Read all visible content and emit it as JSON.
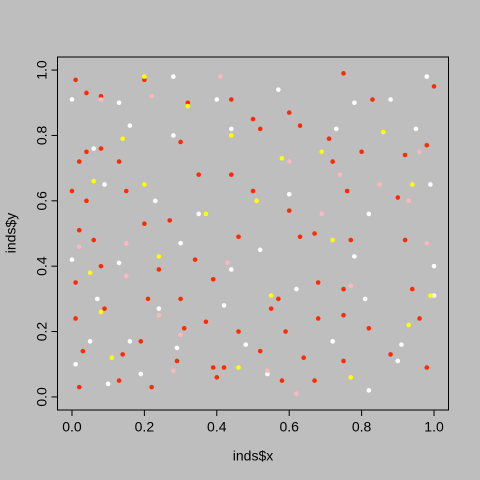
{
  "chart_data": {
    "type": "scatter",
    "x_label": "inds$x",
    "y_label": "inds$y",
    "xlim": [
      -0.04,
      1.04
    ],
    "ylim": [
      -0.04,
      1.04
    ],
    "xticks": [
      {
        "value": 0,
        "label": "0.0"
      },
      0.2,
      0.4,
      0.6,
      0.8,
      {
        "value": 1,
        "label": "1.0"
      }
    ],
    "yticks": [
      {
        "value": 0,
        "label": "0.0"
      },
      0.2,
      0.4,
      0.6,
      0.8,
      {
        "value": 1,
        "label": "1.0"
      }
    ],
    "series": [
      {
        "color": "#ff2a00",
        "x": [
          0.01,
          0.04,
          0.08,
          0.2,
          0.32,
          0.44,
          0.6,
          0.75,
          0.83,
          1.0,
          0.02,
          0.04,
          0.13,
          0.3,
          0.52,
          0.63,
          0.72,
          0.8,
          0.92,
          0.0,
          0.04,
          0.15,
          0.27,
          0.44,
          0.6,
          0.76,
          0.9,
          0.02,
          0.06,
          0.2,
          0.34,
          0.46,
          0.63,
          0.77,
          0.92,
          0.01,
          0.08,
          0.24,
          0.39,
          0.57,
          0.68,
          0.75,
          0.94,
          0.01,
          0.09,
          0.21,
          0.31,
          0.37,
          0.46,
          0.59,
          0.68,
          0.82,
          0.96,
          0.03,
          0.14,
          0.29,
          0.39,
          0.52,
          0.64,
          0.75,
          0.88,
          0.02,
          0.13,
          0.22,
          0.4,
          0.58,
          0.67,
          0.98,
          0.42,
          0.5,
          0.35,
          0.5,
          0.67,
          0.08,
          0.98,
          0.71,
          0.55,
          0.3,
          0.19,
          0.75
        ],
        "y": [
          0.97,
          0.93,
          0.92,
          0.97,
          0.9,
          0.91,
          0.87,
          0.99,
          0.91,
          0.95,
          0.72,
          0.75,
          0.72,
          0.78,
          0.82,
          0.83,
          0.72,
          0.75,
          0.74,
          0.63,
          0.6,
          0.63,
          0.54,
          0.68,
          0.57,
          0.63,
          0.61,
          0.51,
          0.48,
          0.53,
          0.42,
          0.49,
          0.49,
          0.48,
          0.48,
          0.35,
          0.4,
          0.39,
          0.36,
          0.3,
          0.35,
          0.33,
          0.33,
          0.24,
          0.27,
          0.3,
          0.21,
          0.23,
          0.2,
          0.2,
          0.24,
          0.21,
          0.24,
          0.14,
          0.13,
          0.11,
          0.09,
          0.14,
          0.12,
          0.11,
          0.13,
          0.03,
          0.05,
          0.03,
          0.06,
          0.05,
          0.05,
          0.09,
          0.09,
          0.85,
          0.68,
          0.63,
          0.5,
          0.76,
          0.77,
          0.79,
          0.27,
          0.3,
          0.17,
          0.25
        ]
      },
      {
        "color": "#ffffff",
        "x": [
          0.0,
          0.13,
          0.28,
          0.4,
          0.57,
          0.78,
          0.98,
          0.16,
          0.28,
          0.44,
          0.73,
          0.95,
          0.09,
          0.23,
          0.35,
          0.6,
          0.82,
          0.99,
          0.0,
          0.13,
          0.3,
          0.44,
          0.52,
          0.78,
          1.0,
          0.07,
          0.24,
          0.42,
          0.62,
          0.81,
          1.0,
          0.05,
          0.16,
          0.29,
          0.48,
          0.72,
          0.91,
          0.1,
          0.19,
          0.54,
          0.82,
          0.9,
          0.01,
          0.06,
          0.88
        ],
        "y": [
          0.91,
          0.9,
          0.98,
          0.91,
          0.94,
          0.9,
          0.98,
          0.83,
          0.8,
          0.82,
          0.82,
          0.82,
          0.65,
          0.6,
          0.56,
          0.62,
          0.56,
          0.65,
          0.42,
          0.41,
          0.47,
          0.39,
          0.45,
          0.43,
          0.4,
          0.3,
          0.27,
          0.28,
          0.33,
          0.3,
          0.31,
          0.17,
          0.17,
          0.15,
          0.16,
          0.17,
          0.16,
          0.04,
          0.07,
          0.07,
          0.02,
          0.11,
          0.1,
          0.76,
          0.91
        ]
      },
      {
        "color": "#ffb6c1",
        "x": [
          0.22,
          0.41,
          0.08,
          0.02,
          0.15,
          0.24,
          0.3,
          0.54,
          0.62,
          0.6,
          0.74,
          0.93,
          0.98,
          0.85,
          0.69,
          0.77,
          0.43,
          0.28,
          0.15,
          0.96
        ],
        "y": [
          0.92,
          0.98,
          0.91,
          0.46,
          0.37,
          0.25,
          0.19,
          0.08,
          0.01,
          0.72,
          0.68,
          0.6,
          0.47,
          0.65,
          0.56,
          0.34,
          0.41,
          0.08,
          0.47,
          0.75
        ]
      },
      {
        "color": "#ffff00",
        "x": [
          0.2,
          0.32,
          0.08,
          0.06,
          0.14,
          0.2,
          0.37,
          0.51,
          0.44,
          0.58,
          0.69,
          0.72,
          0.55,
          0.94,
          0.86,
          0.99,
          0.77,
          0.46,
          0.11,
          0.05,
          0.24,
          0.93
        ],
        "y": [
          0.98,
          0.89,
          0.26,
          0.66,
          0.79,
          0.65,
          0.56,
          0.6,
          0.8,
          0.73,
          0.75,
          0.48,
          0.31,
          0.65,
          0.81,
          0.31,
          0.06,
          0.09,
          0.12,
          0.38,
          0.43,
          0.22
        ]
      }
    ]
  }
}
